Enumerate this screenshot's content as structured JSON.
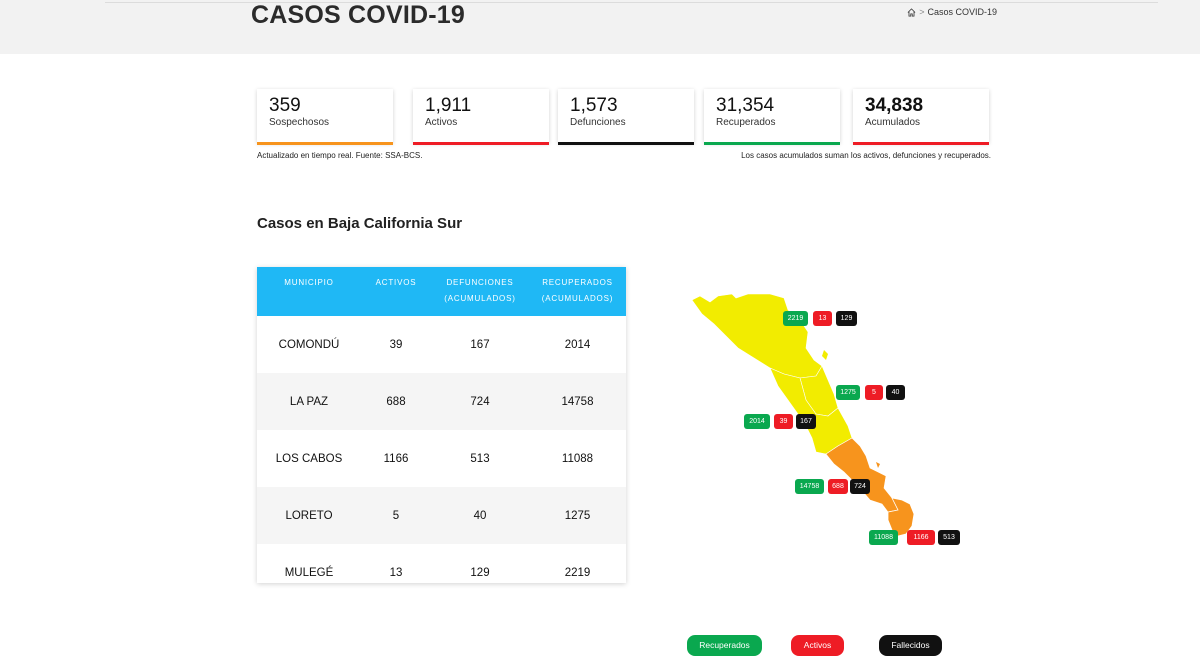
{
  "header": {
    "title": "CASOS COVID-19",
    "breadcrumb": {
      "home_icon": "home-icon",
      "separator": ">",
      "current": "Casos COVID-19"
    }
  },
  "cards": [
    {
      "value": "359",
      "label": "Sospechosos",
      "color": "#f7941d"
    },
    {
      "value": "1,911",
      "label": "Activos",
      "color": "#ee1c25"
    },
    {
      "value": "1,573",
      "label": "Defunciones",
      "color": "#111111"
    },
    {
      "value": "31,354",
      "label": "Recuperados",
      "color": "#0aa84f"
    },
    {
      "value": "34,838",
      "label": "Acumulados",
      "color": "#ee1c25"
    }
  ],
  "notes": {
    "left": "Actualizado en tiempo real. Fuente: SSA-BCS.",
    "right": "Los casos acumulados suman los activos, defunciones y recuperados."
  },
  "section_title": "Casos en Baja California Sur",
  "table": {
    "headers": [
      {
        "line1": "MUNICIPIO",
        "line2": ""
      },
      {
        "line1": "ACTIVOS",
        "line2": ""
      },
      {
        "line1": "DEFUNCIONES",
        "line2": "(ACUMULADOS)"
      },
      {
        "line1": "RECUPERADOS",
        "line2": "(ACUMULADOS)"
      }
    ],
    "rows": [
      {
        "municipio": "COMONDÚ",
        "activos": "39",
        "defunciones": "167",
        "recuperados": "2014"
      },
      {
        "municipio": "LA PAZ",
        "activos": "688",
        "defunciones": "724",
        "recuperados": "14758"
      },
      {
        "municipio": "LOS CABOS",
        "activos": "1166",
        "defunciones": "513",
        "recuperados": "11088"
      },
      {
        "municipio": "LORETO",
        "activos": "5",
        "defunciones": "40",
        "recuperados": "1275"
      },
      {
        "municipio": "MULEGÉ",
        "activos": "13",
        "defunciones": "129",
        "recuperados": "2219"
      }
    ],
    "header_color": "#1fb8f5"
  },
  "map": {
    "badges": {
      "mulege": {
        "recuperados": "2219",
        "activos": "13",
        "fallecidos": "129"
      },
      "loreto": {
        "recuperados": "1275",
        "activos": "5",
        "fallecidos": "40"
      },
      "comondu": {
        "recuperados": "2014",
        "activos": "39",
        "fallecidos": "167"
      },
      "la_paz": {
        "recuperados": "14758",
        "activos": "688",
        "fallecidos": "724"
      },
      "los_cabos": {
        "recuperados": "11088",
        "activos": "1166",
        "fallecidos": "513"
      }
    },
    "colors": {
      "yellow": "#f2ec00",
      "orange": "#f7941d"
    }
  },
  "legend": {
    "recuperados": "Recuperados",
    "activos": "Activos",
    "fallecidos": "Fallecidos"
  }
}
